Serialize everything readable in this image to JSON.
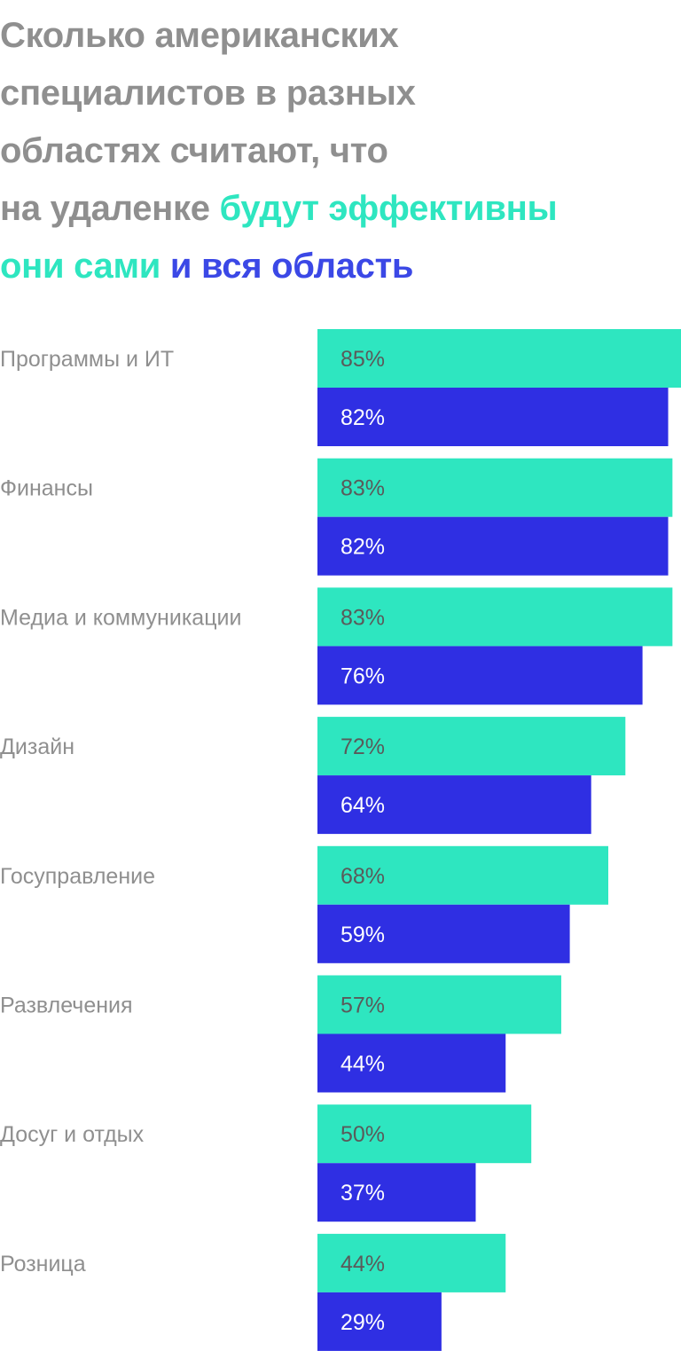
{
  "title": {
    "line1": "Сколько американских",
    "line2": "специалистов в разных",
    "line3": "областях считают, что",
    "line4_start": "на удаленке ",
    "line4_highlight": "будут эффективны",
    "line5_self": "они сами",
    "line5_field": " и вся область"
  },
  "colors": {
    "title_gray": "#8f8f8f",
    "self": "#2ee6c0",
    "field": "#2f2fe3"
  },
  "chart_data": {
    "type": "bar",
    "orientation": "horizontal",
    "categories": [
      "Программы и ИТ",
      "Финансы",
      "Медиа и коммуникации",
      "Дизайн",
      "Госуправление",
      "Развлечения",
      "Досуг и отдых",
      "Розница"
    ],
    "series": [
      {
        "name": "они сами",
        "color": "#2ee6c0",
        "values": [
          85,
          83,
          83,
          72,
          68,
          57,
          50,
          44
        ],
        "labels": [
          "85%",
          "83%",
          "83%",
          "72%",
          "68%",
          "57%",
          "50%",
          "44%"
        ]
      },
      {
        "name": "и вся область",
        "color": "#2f2fe3",
        "values": [
          82,
          82,
          76,
          64,
          59,
          44,
          37,
          29
        ],
        "labels": [
          "82%",
          "82%",
          "76%",
          "64%",
          "59%",
          "44%",
          "37%",
          "29%"
        ]
      }
    ],
    "xlim": [
      0,
      85
    ],
    "grid": false
  }
}
